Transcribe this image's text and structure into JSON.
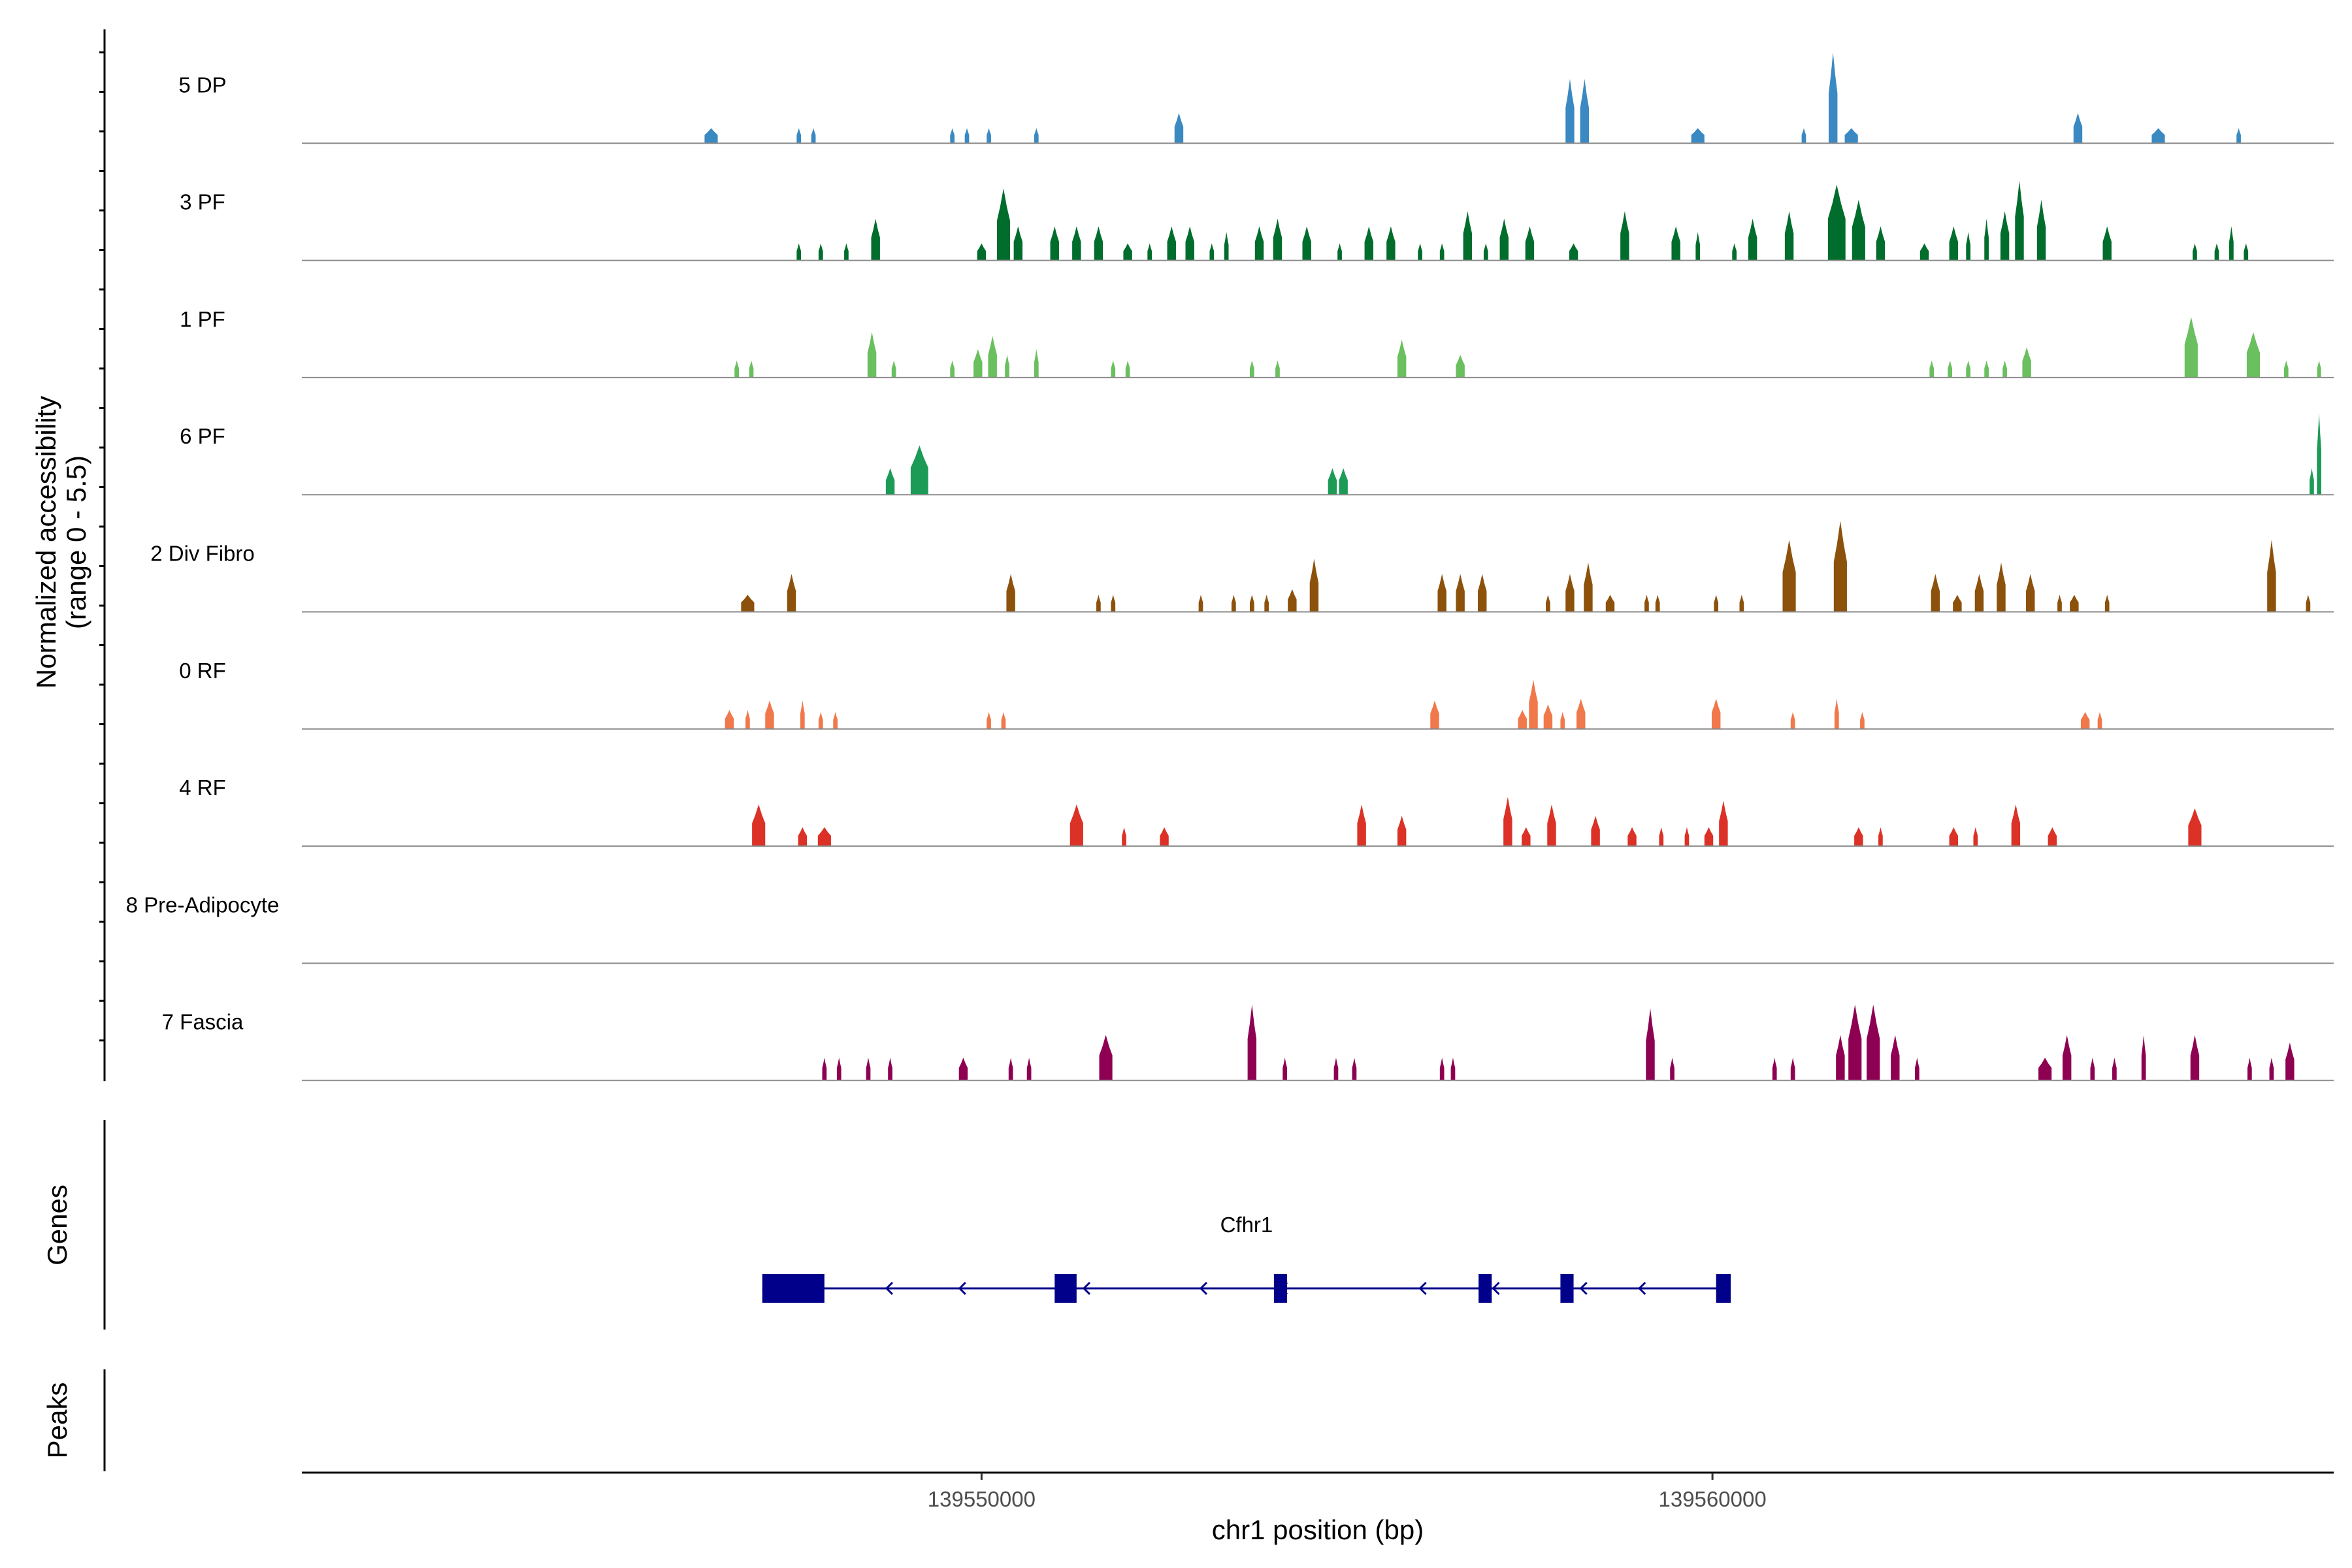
{
  "chart_data": {
    "type": "coverage-tracks",
    "xlabel": "chr1 position (bp)",
    "ylabel_line1": "Normalized accessibility",
    "ylabel_line2": "(range 0 - 5.5)",
    "y_range": [
      0,
      5.5
    ],
    "x_range": [
      139540700,
      139568500
    ],
    "x_ticks": [
      139550000,
      139560000
    ],
    "x_tick_labels": [
      "139550000",
      "139560000"
    ],
    "panels": {
      "genes_title": "Genes",
      "peaks_title": "Peaks"
    },
    "tracks": [
      {
        "name": "5 DP",
        "color": "#3a89c2",
        "peaks": [
          [
            139546300,
            180,
            0.8
          ],
          [
            139547500,
            60,
            0.8
          ],
          [
            139547700,
            60,
            0.8
          ],
          [
            139549600,
            60,
            0.8
          ],
          [
            139549800,
            60,
            0.8
          ],
          [
            139550100,
            60,
            0.8
          ],
          [
            139550750,
            60,
            0.8
          ],
          [
            139552700,
            120,
            1.6
          ],
          [
            139558050,
            120,
            3.4
          ],
          [
            139558250,
            120,
            3.4
          ],
          [
            139559800,
            180,
            0.8
          ],
          [
            139561250,
            60,
            0.8
          ],
          [
            139561650,
            120,
            4.8
          ],
          [
            139561900,
            180,
            0.8
          ],
          [
            139565000,
            120,
            1.6
          ],
          [
            139566100,
            180,
            0.8
          ],
          [
            139567200,
            60,
            0.8
          ]
        ]
      },
      {
        "name": "3 PF",
        "color": "#006d2c",
        "peaks": [
          [
            139547500,
            60,
            0.9
          ],
          [
            139547800,
            60,
            0.9
          ],
          [
            139548150,
            60,
            0.9
          ],
          [
            139548550,
            120,
            2.2
          ],
          [
            139550000,
            120,
            0.9
          ],
          [
            139550300,
            180,
            3.8
          ],
          [
            139550500,
            120,
            1.8
          ],
          [
            139551000,
            120,
            1.8
          ],
          [
            139551300,
            120,
            1.8
          ],
          [
            139551600,
            120,
            1.8
          ],
          [
            139552000,
            120,
            0.9
          ],
          [
            139552300,
            60,
            0.9
          ],
          [
            139552600,
            120,
            1.8
          ],
          [
            139552850,
            120,
            1.8
          ],
          [
            139553150,
            60,
            0.9
          ],
          [
            139553350,
            60,
            1.5
          ],
          [
            139553800,
            120,
            1.8
          ],
          [
            139554050,
            120,
            2.2
          ],
          [
            139554450,
            120,
            1.8
          ],
          [
            139554900,
            60,
            0.9
          ],
          [
            139555300,
            120,
            1.8
          ],
          [
            139555600,
            120,
            1.8
          ],
          [
            139556000,
            60,
            0.9
          ],
          [
            139556300,
            60,
            0.9
          ],
          [
            139556650,
            120,
            2.6
          ],
          [
            139556900,
            60,
            0.9
          ],
          [
            139557150,
            120,
            2.2
          ],
          [
            139557500,
            120,
            1.8
          ],
          [
            139558100,
            120,
            0.9
          ],
          [
            139558800,
            120,
            2.6
          ],
          [
            139559500,
            120,
            1.8
          ],
          [
            139559800,
            60,
            1.5
          ],
          [
            139560300,
            60,
            0.9
          ],
          [
            139560550,
            120,
            2.2
          ],
          [
            139561050,
            120,
            2.6
          ],
          [
            139561700,
            240,
            4.0
          ],
          [
            139562000,
            180,
            3.2
          ],
          [
            139562300,
            120,
            1.8
          ],
          [
            139562900,
            120,
            0.9
          ],
          [
            139563300,
            120,
            1.8
          ],
          [
            139563500,
            60,
            1.5
          ],
          [
            139563750,
            60,
            2.2
          ],
          [
            139564000,
            120,
            2.6
          ],
          [
            139564200,
            120,
            4.2
          ],
          [
            139564500,
            120,
            3.2
          ],
          [
            139565400,
            120,
            1.8
          ],
          [
            139566600,
            60,
            0.9
          ],
          [
            139566900,
            60,
            0.9
          ],
          [
            139567100,
            60,
            1.8
          ],
          [
            139567300,
            60,
            0.9
          ]
        ]
      },
      {
        "name": "1 PF",
        "color": "#6abf5e",
        "peaks": [
          [
            139546650,
            60,
            0.9
          ],
          [
            139546850,
            60,
            0.9
          ],
          [
            139548500,
            120,
            2.4
          ],
          [
            139548800,
            60,
            0.9
          ],
          [
            139549600,
            60,
            0.9
          ],
          [
            139549950,
            120,
            1.5
          ],
          [
            139550150,
            120,
            2.2
          ],
          [
            139550350,
            60,
            1.2
          ],
          [
            139550750,
            60,
            1.5
          ],
          [
            139551800,
            60,
            0.9
          ],
          [
            139552000,
            60,
            0.9
          ],
          [
            139553700,
            60,
            0.9
          ],
          [
            139554050,
            60,
            0.9
          ],
          [
            139555750,
            120,
            2.0
          ],
          [
            139556550,
            120,
            1.2
          ],
          [
            139563000,
            60,
            0.9
          ],
          [
            139563250,
            60,
            0.9
          ],
          [
            139563500,
            60,
            0.9
          ],
          [
            139563750,
            60,
            0.9
          ],
          [
            139564000,
            60,
            0.9
          ],
          [
            139564300,
            120,
            1.6
          ],
          [
            139566550,
            180,
            3.2
          ],
          [
            139567400,
            180,
            2.4
          ],
          [
            139567850,
            60,
            0.9
          ],
          [
            139568300,
            30,
            0.9
          ]
        ]
      },
      {
        "name": "6 PF",
        "color": "#1c9b57",
        "peaks": [
          [
            139548750,
            120,
            1.4
          ],
          [
            139549150,
            240,
            2.6
          ],
          [
            139554800,
            120,
            1.4
          ],
          [
            139554950,
            120,
            1.4
          ],
          [
            139568200,
            60,
            1.4
          ],
          [
            139568300,
            60,
            4.3
          ]
        ]
      },
      {
        "name": "2 Div Fibro",
        "color": "#8c510a",
        "peaks": [
          [
            139546800,
            180,
            0.9
          ],
          [
            139547400,
            120,
            2.0
          ],
          [
            139550400,
            120,
            2.0
          ],
          [
            139551600,
            60,
            0.9
          ],
          [
            139551800,
            60,
            0.9
          ],
          [
            139553000,
            60,
            0.9
          ],
          [
            139553450,
            60,
            0.9
          ],
          [
            139553700,
            60,
            0.9
          ],
          [
            139553900,
            60,
            0.9
          ],
          [
            139554250,
            120,
            1.2
          ],
          [
            139554550,
            120,
            2.8
          ],
          [
            139556300,
            120,
            2.0
          ],
          [
            139556550,
            120,
            2.0
          ],
          [
            139556850,
            120,
            2.0
          ],
          [
            139557750,
            60,
            0.9
          ],
          [
            139558050,
            120,
            2.0
          ],
          [
            139558300,
            120,
            2.6
          ],
          [
            139558600,
            120,
            0.9
          ],
          [
            139559100,
            60,
            0.9
          ],
          [
            139559250,
            60,
            0.9
          ],
          [
            139560050,
            60,
            0.9
          ],
          [
            139560400,
            60,
            0.9
          ],
          [
            139561050,
            180,
            3.8
          ],
          [
            139561750,
            180,
            4.8
          ],
          [
            139563050,
            120,
            2.0
          ],
          [
            139563350,
            120,
            0.9
          ],
          [
            139563650,
            120,
            2.0
          ],
          [
            139563950,
            120,
            2.6
          ],
          [
            139564350,
            120,
            2.0
          ],
          [
            139564750,
            60,
            0.9
          ],
          [
            139564950,
            120,
            0.9
          ],
          [
            139565400,
            60,
            0.9
          ],
          [
            139567650,
            120,
            3.8
          ],
          [
            139568150,
            60,
            0.9
          ]
        ]
      },
      {
        "name": "0 RF",
        "color": "#f0784a",
        "peaks": [
          [
            139546550,
            120,
            1.0
          ],
          [
            139546800,
            60,
            1.0
          ],
          [
            139547100,
            120,
            1.5
          ],
          [
            139547550,
            60,
            1.5
          ],
          [
            139547800,
            60,
            0.9
          ],
          [
            139548000,
            60,
            0.9
          ],
          [
            139550100,
            60,
            0.9
          ],
          [
            139550300,
            60,
            0.9
          ],
          [
            139556200,
            120,
            1.5
          ],
          [
            139557400,
            120,
            1.0
          ],
          [
            139557550,
            120,
            2.6
          ],
          [
            139557750,
            120,
            1.3
          ],
          [
            139557950,
            60,
            0.9
          ],
          [
            139558200,
            120,
            1.6
          ],
          [
            139560050,
            120,
            1.6
          ],
          [
            139561100,
            60,
            0.9
          ],
          [
            139561700,
            60,
            1.6
          ],
          [
            139562050,
            60,
            0.9
          ],
          [
            139565100,
            120,
            0.9
          ],
          [
            139565300,
            60,
            0.9
          ]
        ]
      },
      {
        "name": "4 RF",
        "color": "#dc3126",
        "peaks": [
          [
            139546950,
            180,
            2.2
          ],
          [
            139547550,
            120,
            1.0
          ],
          [
            139547850,
            180,
            1.0
          ],
          [
            139551300,
            180,
            2.2
          ],
          [
            139551950,
            60,
            1.0
          ],
          [
            139552500,
            120,
            1.0
          ],
          [
            139555200,
            120,
            2.2
          ],
          [
            139555750,
            120,
            1.6
          ],
          [
            139557200,
            120,
            2.6
          ],
          [
            139557450,
            120,
            1.0
          ],
          [
            139557800,
            120,
            2.2
          ],
          [
            139558400,
            120,
            1.6
          ],
          [
            139558900,
            120,
            1.0
          ],
          [
            139559300,
            60,
            1.0
          ],
          [
            139559650,
            60,
            1.0
          ],
          [
            139559950,
            120,
            1.0
          ],
          [
            139560150,
            120,
            2.4
          ],
          [
            139562000,
            120,
            1.0
          ],
          [
            139562300,
            60,
            1.0
          ],
          [
            139563300,
            120,
            1.0
          ],
          [
            139563600,
            60,
            1.0
          ],
          [
            139564150,
            120,
            2.2
          ],
          [
            139564650,
            120,
            1.0
          ],
          [
            139566600,
            180,
            2.0
          ]
        ]
      },
      {
        "name": "8 Pre-Adipocyte",
        "color": "#7f3b08",
        "peaks": []
      },
      {
        "name": "7 Fascia",
        "color": "#8e0152",
        "peaks": [
          [
            139547850,
            60,
            1.2
          ],
          [
            139548050,
            60,
            1.2
          ],
          [
            139548450,
            60,
            1.2
          ],
          [
            139548750,
            60,
            1.2
          ],
          [
            139549750,
            120,
            1.2
          ],
          [
            139550400,
            60,
            1.2
          ],
          [
            139550650,
            60,
            1.2
          ],
          [
            139551700,
            180,
            2.4
          ],
          [
            139553700,
            120,
            4.0
          ],
          [
            139554150,
            60,
            1.2
          ],
          [
            139554850,
            60,
            1.2
          ],
          [
            139555100,
            60,
            1.2
          ],
          [
            139556300,
            60,
            1.2
          ],
          [
            139556450,
            60,
            1.2
          ],
          [
            139559150,
            120,
            3.8
          ],
          [
            139559450,
            60,
            1.2
          ],
          [
            139560850,
            60,
            1.2
          ],
          [
            139561100,
            60,
            1.2
          ],
          [
            139561750,
            120,
            2.4
          ],
          [
            139561950,
            180,
            4.0
          ],
          [
            139562200,
            180,
            4.0
          ],
          [
            139562500,
            120,
            2.4
          ],
          [
            139562800,
            60,
            1.2
          ],
          [
            139564550,
            180,
            1.2
          ],
          [
            139564850,
            120,
            2.4
          ],
          [
            139565200,
            60,
            1.2
          ],
          [
            139565500,
            60,
            1.2
          ],
          [
            139565900,
            60,
            2.4
          ],
          [
            139566600,
            120,
            2.4
          ],
          [
            139567350,
            60,
            1.2
          ],
          [
            139567650,
            60,
            1.2
          ],
          [
            139567900,
            120,
            2.0
          ]
        ]
      }
    ],
    "genes": [
      {
        "name": "Cfhr1",
        "strand": "-",
        "start": 139547000,
        "end": 139560250,
        "color": "#00008b",
        "exons": [
          [
            139547000,
            139547850
          ],
          [
            139551000,
            139551300
          ],
          [
            139554000,
            139554180
          ],
          [
            139556800,
            139556980
          ],
          [
            139557920,
            139558100
          ],
          [
            139560050,
            139560250
          ]
        ],
        "arrows": [
          139547400,
          139548700,
          139549700,
          139551400,
          139553000,
          139554100,
          139556000,
          139557000,
          139558200,
          139559000
        ]
      }
    ],
    "peak_regions": []
  }
}
